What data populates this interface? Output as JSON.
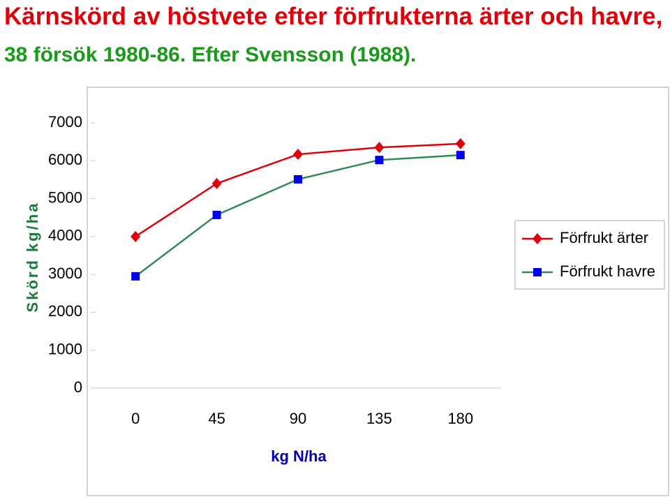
{
  "chart_data": {
    "type": "line",
    "title": "Kärnskörd av höstvete efter förfrukterna ärter och havre,",
    "subtitle": "38 försök 1980-86. Efter Svensson (1988).",
    "x_label": "kg N/ha",
    "y_label": "Skörd kg/ha",
    "categories": [
      "0",
      "45",
      "90",
      "135",
      "180"
    ],
    "series": [
      {
        "name": "Förfrukt ärter",
        "color": "#e0000a",
        "marker": "diamond",
        "values": [
          4000,
          5400,
          6170,
          6350,
          6450
        ]
      },
      {
        "name": "Förfrukt havre",
        "color": "#2e8b57",
        "marker_color": "#0000ee",
        "marker": "square",
        "values": [
          2950,
          4570,
          5510,
          6020,
          6150
        ]
      }
    ],
    "ylim": [
      0,
      7000
    ],
    "yticks": [
      0,
      1000,
      2000,
      3000,
      4000,
      5000,
      6000,
      7000
    ],
    "legend": "right"
  }
}
